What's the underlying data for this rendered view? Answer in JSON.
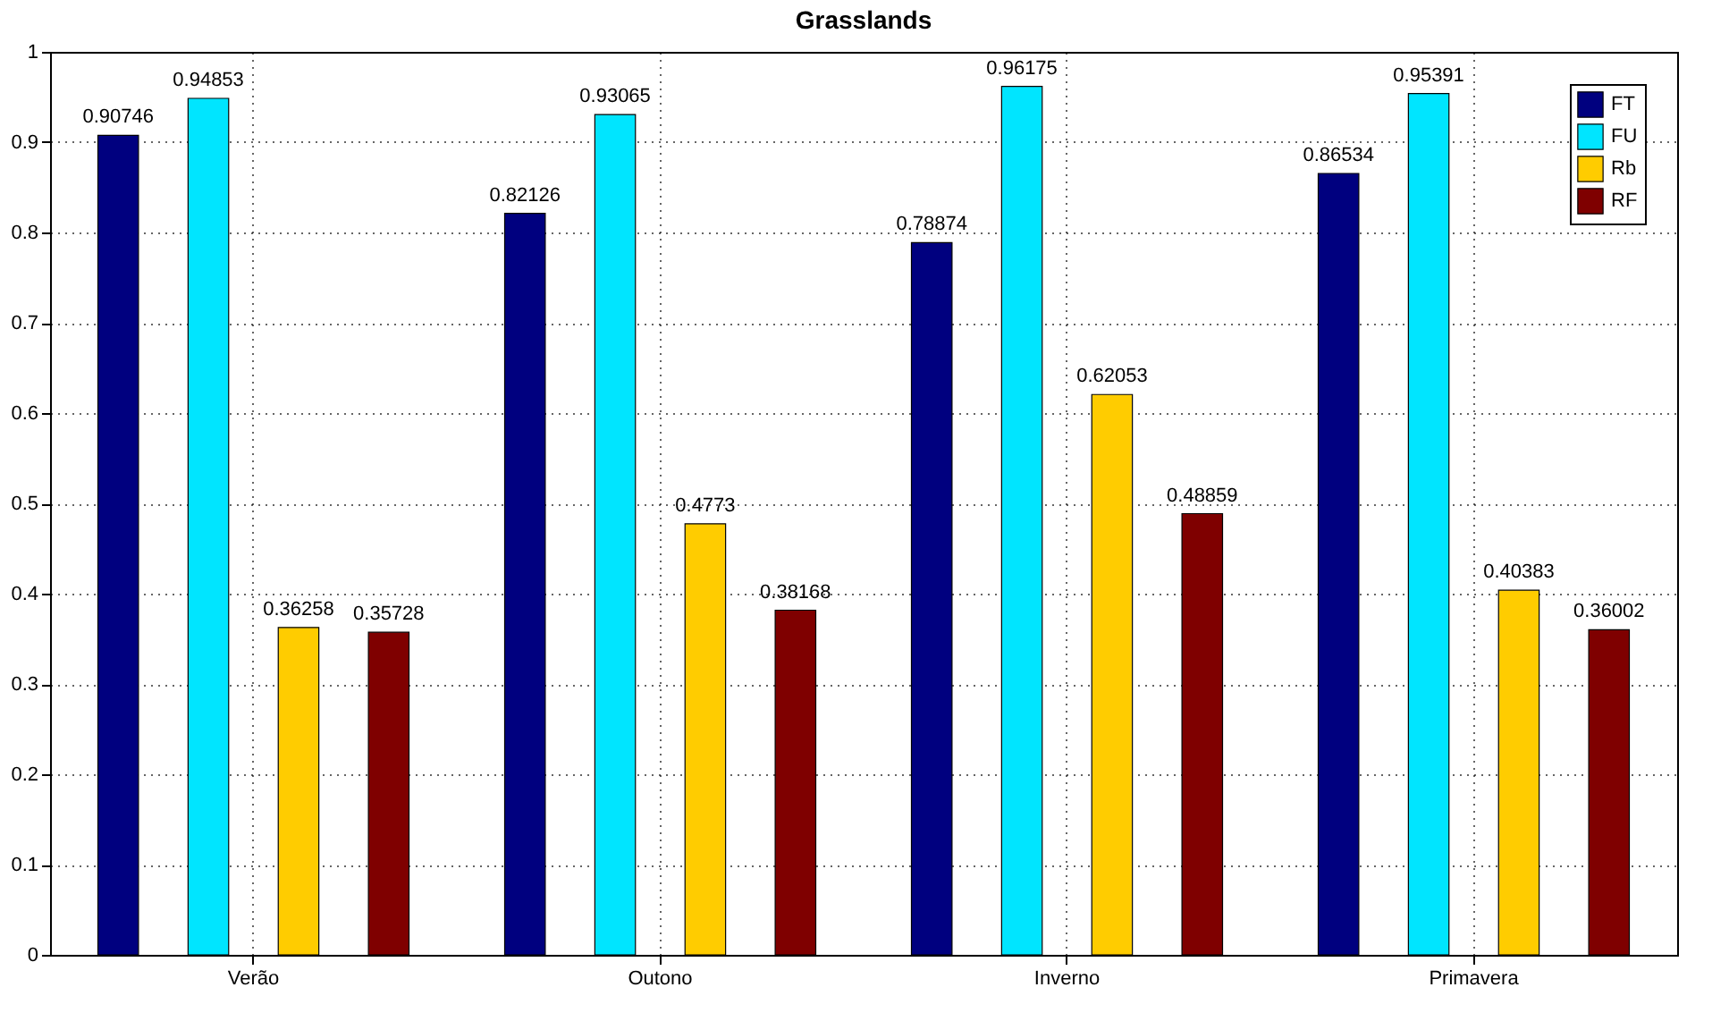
{
  "chart_data": {
    "type": "bar",
    "title": "Grasslands",
    "categories": [
      "Verão",
      "Outono",
      "Inverno",
      "Primavera"
    ],
    "series": [
      {
        "name": "FT",
        "color": "#00007f",
        "values": [
          0.90746,
          0.82126,
          0.78874,
          0.86534
        ]
      },
      {
        "name": "FU",
        "color": "#00e5ff",
        "values": [
          0.94853,
          0.93065,
          0.96175,
          0.95391
        ]
      },
      {
        "name": "Rb",
        "color": "#ffcc00",
        "values": [
          0.36258,
          0.4773,
          0.62053,
          0.40383
        ]
      },
      {
        "name": "RF",
        "color": "#7f0000",
        "values": [
          0.35728,
          0.38168,
          0.48859,
          0.36002
        ]
      }
    ],
    "ylim": [
      0,
      1
    ],
    "yticks": [
      0,
      0.1,
      0.2,
      0.3,
      0.4,
      0.5,
      0.6,
      0.7,
      0.8,
      0.9,
      1
    ],
    "grid": true,
    "legend": "top right",
    "data_labels": true
  }
}
